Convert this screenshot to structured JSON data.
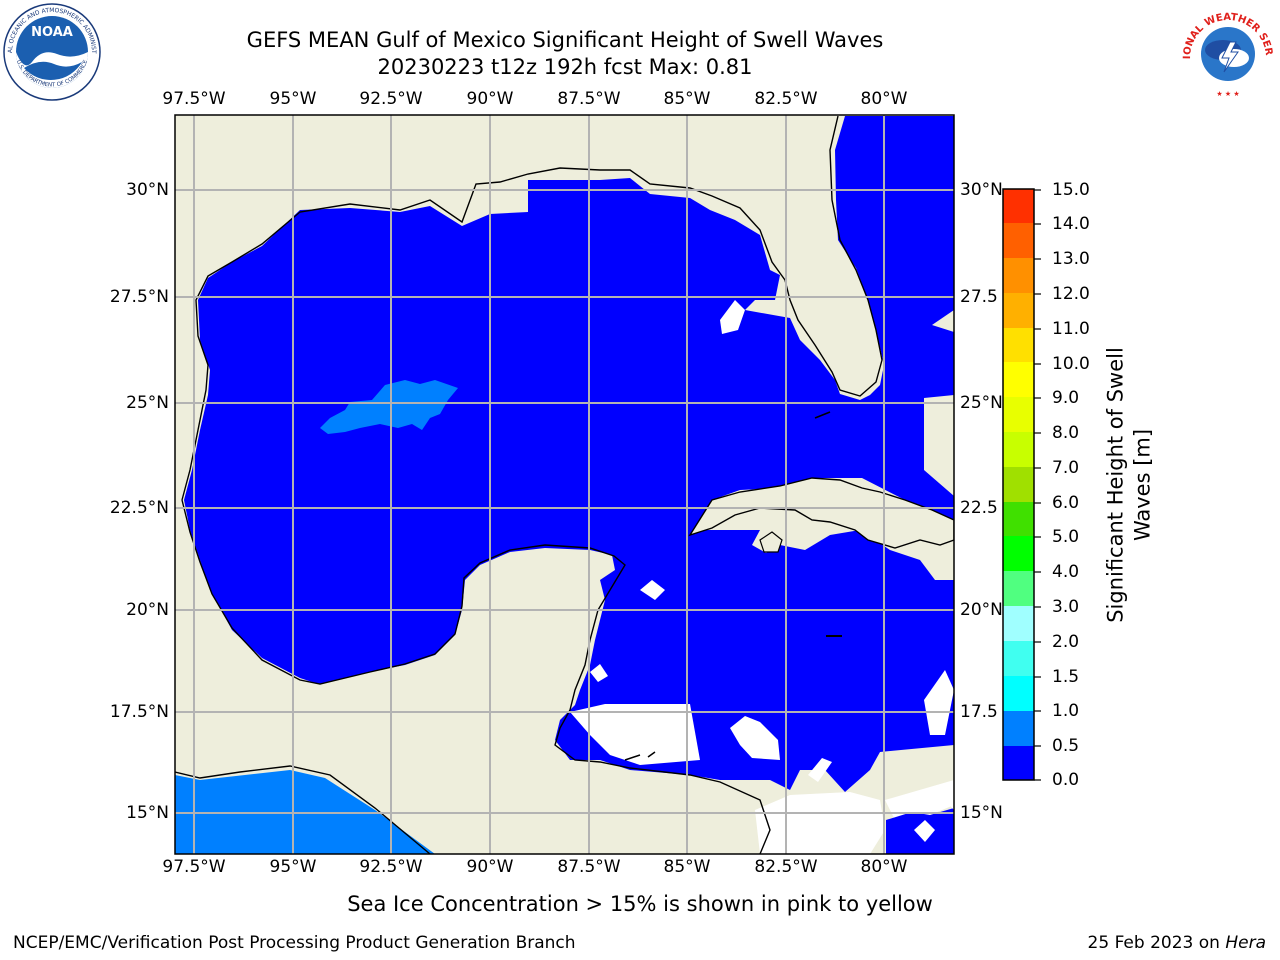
{
  "title": {
    "line1": "GEFS MEAN Gulf of Mexico Significant Height of Swell Waves",
    "line2": "20230223 t12z 192h fcst   Max: 0.81"
  },
  "logos": {
    "left": {
      "name": "NOAA",
      "ring_text": "NATIONAL OCEANIC AND ATMOSPHERIC ADMINISTRATION",
      "bottom_text": "U.S. DEPARTMENT OF COMMERCE"
    },
    "right": {
      "name": "NATIONAL WEATHER SERVICE"
    }
  },
  "map": {
    "lon_labels": [
      "97.5°W",
      "95°W",
      "92.5°W",
      "90°W",
      "87.5°W",
      "85°W",
      "82.5°W",
      "80°W"
    ],
    "lat_labels": [
      "30°N",
      "27.5°N",
      "25°N",
      "22.5°N",
      "20°N",
      "17.5°N",
      "15°N"
    ],
    "lat_labels_right": [
      "30°N",
      "27.5",
      "25°N",
      "22.5",
      "20°N",
      "17.5",
      "15°N"
    ],
    "colors": {
      "land": "#eeeedc",
      "ocean_0_05": "#0000ff",
      "ocean_05_1": "#0080ff",
      "gridline": "#b3b3b3"
    }
  },
  "colorbar": {
    "title_line1": "Significant Height of Swell",
    "title_line2": "Waves [m]",
    "labels": [
      "15.0",
      "14.0",
      "13.0",
      "12.0",
      "11.0",
      "10.0",
      "9.0",
      "8.0",
      "7.0",
      "6.0",
      "5.0",
      "4.0",
      "3.0",
      "2.0",
      "1.5",
      "1.0",
      "0.5",
      "0.0"
    ],
    "colors_bottom_to_top": [
      "#0000ff",
      "#0080ff",
      "#00ffff",
      "#40fff0",
      "#a0ffff",
      "#50ff80",
      "#00ff00",
      "#40e000",
      "#a0e000",
      "#c8ff00",
      "#e8ff00",
      "#ffff00",
      "#ffe000",
      "#ffb000",
      "#ff9000",
      "#ff6000",
      "#ff3000",
      "#ff0000"
    ]
  },
  "note": "Sea Ice Concentration > 15% is shown in pink to yellow",
  "footer": {
    "left": "NCEP/EMC/Verification Post Processing Product Generation Branch",
    "right_date": "25 Feb 2023 on ",
    "right_machine": "Hera"
  }
}
